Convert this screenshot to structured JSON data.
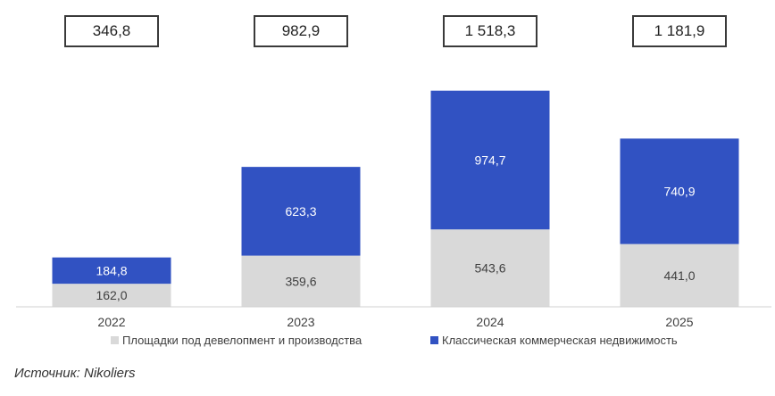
{
  "chart_data": {
    "type": "bar",
    "stacked": true,
    "categories": [
      "2022",
      "2023",
      "2024",
      "2025"
    ],
    "series": [
      {
        "name": "Площадки под девелопмент и производства",
        "values": [
          162.0,
          359.6,
          543.6,
          441.0
        ],
        "labels": [
          "162,0",
          "359,6",
          "543,6",
          "441,0"
        ],
        "color": "#d9d9d9",
        "label_color": "#404040"
      },
      {
        "name": "Классическая коммерческая недвижимость",
        "values": [
          184.8,
          623.3,
          974.7,
          740.9
        ],
        "labels": [
          "184,8",
          "623,3",
          "974,7",
          "740,9"
        ],
        "color": "#3152c2",
        "label_color": "#ffffff"
      }
    ],
    "totals": [
      "346,8",
      "982,9",
      "1 518,3",
      "1 181,9"
    ],
    "legend_position": "bottom",
    "grid": false
  },
  "source": "Источник: Nikoliers"
}
